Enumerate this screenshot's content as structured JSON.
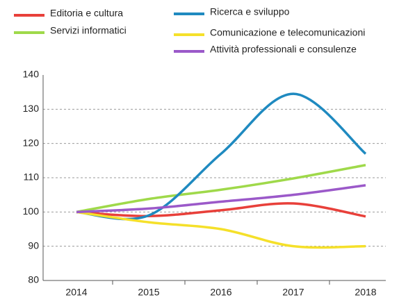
{
  "chart_data": {
    "type": "line",
    "categories": [
      "2014",
      "2015",
      "2016",
      "2017",
      "2018"
    ],
    "series": [
      {
        "name": "Editoria e cultura",
        "color": "#e8403a",
        "values": [
          100,
          98.8,
          100.5,
          102.5,
          98.7
        ]
      },
      {
        "name": "Servizi informatici",
        "color": "#9fd94a",
        "values": [
          100,
          103.8,
          106.5,
          109.8,
          113.7
        ]
      },
      {
        "name": "Ricerca e sviluppo",
        "color": "#1f8ac0",
        "values": [
          100,
          99,
          117,
          134.5,
          117
        ]
      },
      {
        "name": "Comunicazione e telecomunicazioni",
        "color": "#f5e02a",
        "values": [
          100,
          97,
          95,
          90,
          90
        ]
      },
      {
        "name": "Attività professionali e consulenze",
        "color": "#9b59c9",
        "values": [
          100,
          101,
          103,
          105,
          107.8
        ]
      }
    ],
    "ylim": [
      80,
      140
    ],
    "yticks": [
      80,
      90,
      100,
      110,
      120,
      130,
      140
    ],
    "grid": true
  }
}
